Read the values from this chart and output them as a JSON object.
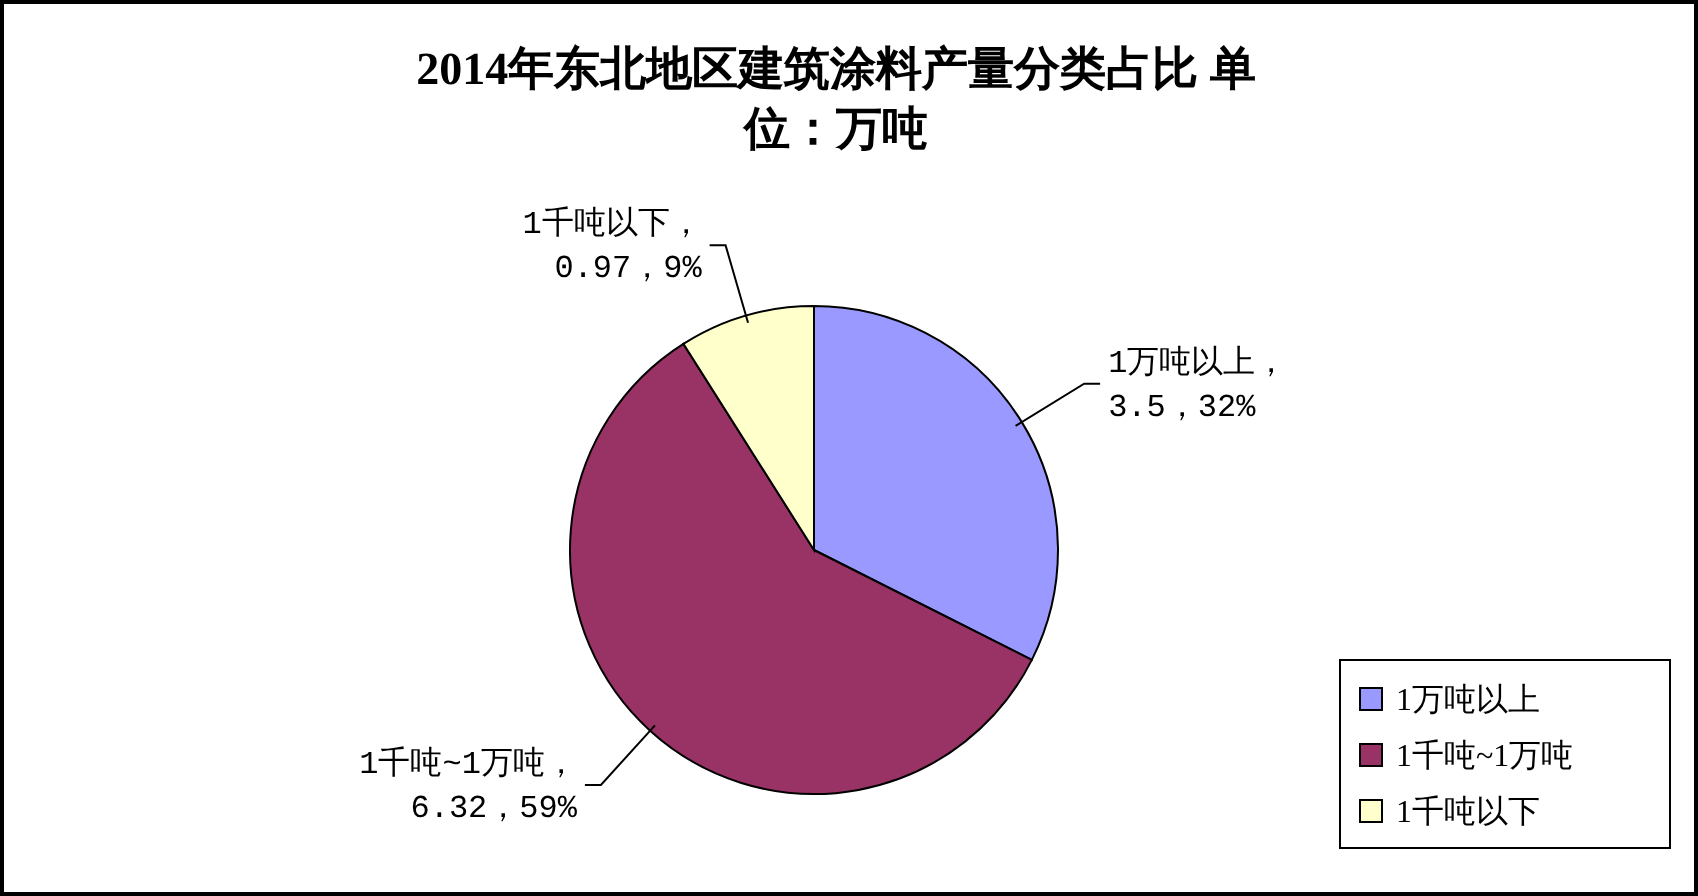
{
  "chart_data": {
    "type": "pie",
    "title": "2014年东北地区建筑涂料产量分类占比 单位：万吨",
    "categories": [
      "1万吨以上",
      "1千吨~1万吨",
      "1千吨以下"
    ],
    "values": [
      3.5,
      6.32,
      0.97
    ],
    "colors": [
      "#9999ff",
      "#993366",
      "#ffffcc"
    ],
    "value_labels": [
      "1万吨以上，\n3.5，32%",
      "1千吨~1万吨，\n6.32，59%",
      "1千吨以下，\n0.97，9%"
    ],
    "legend": "bottom right"
  }
}
